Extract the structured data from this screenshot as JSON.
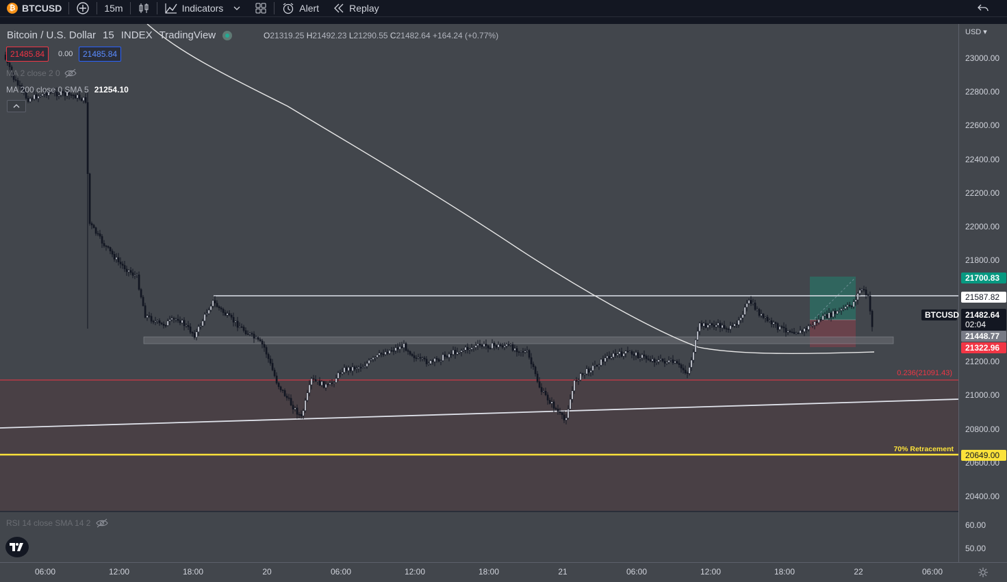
{
  "toolbar": {
    "symbol": "BTCUSD",
    "add_icon": "plus-circle-icon",
    "interval": "15m",
    "chart_type_icon": "candles-icon",
    "indicators_label": "Indicators",
    "layout_icon": "grid-icon",
    "alert_label": "Alert",
    "replay_label": "Replay",
    "undo_icon": "undo-icon"
  },
  "legend": {
    "title": "Bitcoin / U.S. Dollar",
    "interval": "15",
    "exchange": "INDEX",
    "source": "TradingView",
    "o_label": "O",
    "o": "21319.25",
    "h_label": "H",
    "h": "21492.23",
    "l_label": "L",
    "l": "21290.55",
    "c_label": "C",
    "c": "21482.64",
    "change": "+164.24 (+0.77%)",
    "bid": "21485.84",
    "spread": "0.00",
    "ask": "21485.84",
    "ma_hidden": "MA 2 close 2 0",
    "ma200_label": "MA 200 close 0 SMA 5",
    "ma200_value": "21254.10",
    "rsi_label": "RSI 14 close SMA 14 2"
  },
  "price_axis": {
    "currency": "USD",
    "ticks": [
      "23000.00",
      "22800.00",
      "22600.00",
      "22400.00",
      "22200.00",
      "22000.00",
      "21800.00",
      "21200.00",
      "21000.00",
      "20800.00",
      "20600.00",
      "20400.00"
    ],
    "rsi_ticks": [
      "60.00",
      "50.00"
    ],
    "badges": {
      "target": "21700.83",
      "resistance": "21587.82",
      "symbol": "BTCUSD",
      "last": "21482.64",
      "countdown": "02:04",
      "support": "21448.77",
      "stop": "21322.96",
      "retracement": "20649.00"
    }
  },
  "annotations": {
    "fib": "0.236(21091.43)",
    "retracement_label": "70% Retracement"
  },
  "time_axis": {
    "labels": [
      "06:00",
      "12:00",
      "18:00",
      "20",
      "06:00",
      "12:00",
      "18:00",
      "21",
      "06:00",
      "12:00",
      "18:00",
      "22",
      "06:00"
    ]
  },
  "colors": {
    "bg": "#42464c",
    "toolbar": "#131722",
    "up": "#d1d4dc",
    "down": "#131722",
    "fib": "#f23645",
    "retracement": "#fbe23a",
    "target": "#089981",
    "stop": "#f23645"
  }
}
